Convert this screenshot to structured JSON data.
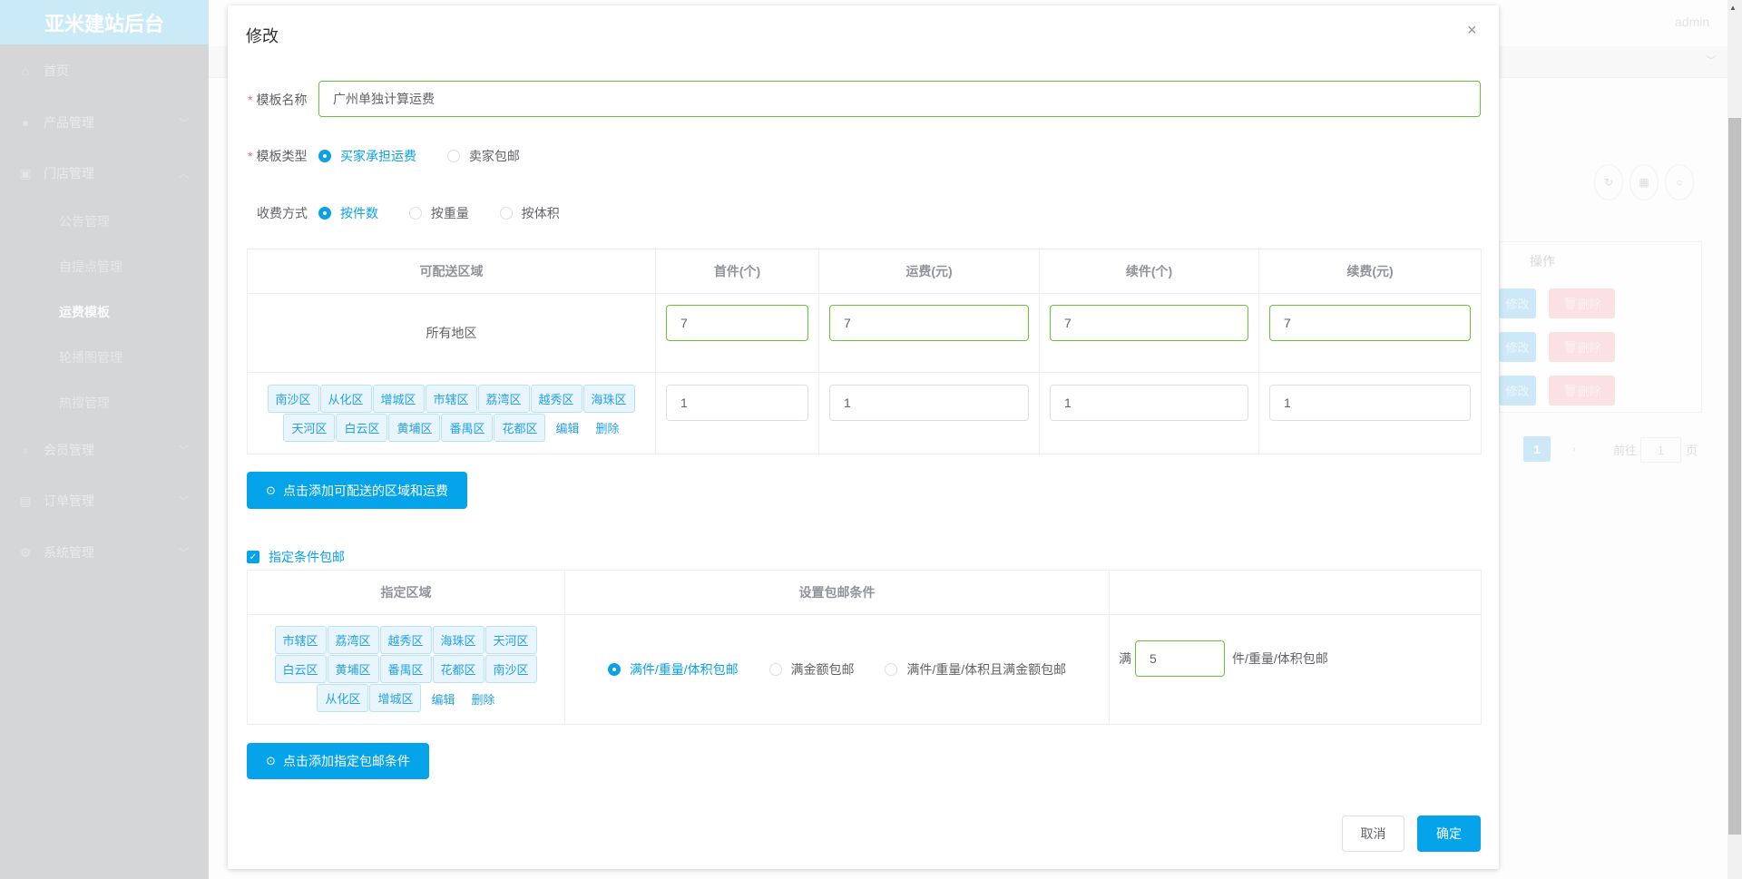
{
  "sidebar": {
    "logo": "亚米建站后台",
    "items": [
      {
        "label": "首页",
        "icon": "home-icon"
      },
      {
        "label": "产品管理",
        "icon": "user-icon"
      },
      {
        "label": "门店管理",
        "icon": "shop-icon"
      },
      {
        "label": "会员管理",
        "icon": "badge-icon"
      },
      {
        "label": "订单管理",
        "icon": "document-icon"
      },
      {
        "label": "系统管理",
        "icon": "gear-icon"
      }
    ],
    "sub_items": [
      "公告管理",
      "自提点管理",
      "运费模板",
      "轮播图管理",
      "热搜管理"
    ],
    "active": "运费模板"
  },
  "header": {
    "user": "admin"
  },
  "background_table": {
    "op_header": "操作",
    "edit_label": "修改",
    "delete_label": "删除",
    "pagination": {
      "current": "1",
      "goto_label": "前往",
      "goto_value": "1",
      "page_suffix": "页"
    }
  },
  "modal": {
    "title": "修改",
    "close": "×",
    "name_label": "模板名称",
    "name_value": "广州单独计算运费",
    "type_label": "模板类型",
    "type_options": [
      "买家承担运费",
      "卖家包邮"
    ],
    "type_selected": "买家承担运费",
    "charge_label": "收费方式",
    "charge_options": [
      "按件数",
      "按重量",
      "按体积"
    ],
    "charge_selected": "按件数",
    "fee_table": {
      "headers": [
        "可配送区域",
        "首件(个)",
        "运费(元)",
        "续件(个)",
        "续费(元)"
      ],
      "rows": [
        {
          "region": "所有地区",
          "values": [
            "7",
            "7",
            "7",
            "7"
          ]
        },
        {
          "tags": [
            "南沙区",
            "从化区",
            "增城区",
            "市辖区",
            "荔湾区",
            "越秀区",
            "海珠区",
            "天河区",
            "白云区",
            "黄埔区",
            "番禺区",
            "花都区"
          ],
          "values": [
            "1",
            "1",
            "1",
            "1"
          ]
        }
      ],
      "edit_link": "编辑",
      "delete_link": "删除"
    },
    "add_region_button": "点击添加可配送的区域和运费",
    "free_checkbox_label": "指定条件包邮",
    "free_checked": true,
    "free_table": {
      "headers": [
        "指定区域",
        "设置包邮条件",
        ""
      ],
      "tags": [
        "市辖区",
        "荔湾区",
        "越秀区",
        "海珠区",
        "天河区",
        "白云区",
        "黄埔区",
        "番禺区",
        "花都区",
        "南沙区",
        "从化区",
        "增城区"
      ],
      "edit_link": "编辑",
      "delete_link": "删除",
      "condition_options": [
        "满件/重量/体积包邮",
        "满金额包邮",
        "满件/重量/体积且满金额包邮"
      ],
      "condition_selected": "满件/重量/体积包邮",
      "prefix": "满",
      "value": "5",
      "suffix": "件/重量/体积包邮"
    },
    "add_free_button": "点击添加指定包邮条件",
    "cancel": "取消",
    "confirm": "确定"
  },
  "colors": {
    "primary": "#05a4ea",
    "valid_border": "#67c23a",
    "tag_bg": "#e8f5fd"
  }
}
